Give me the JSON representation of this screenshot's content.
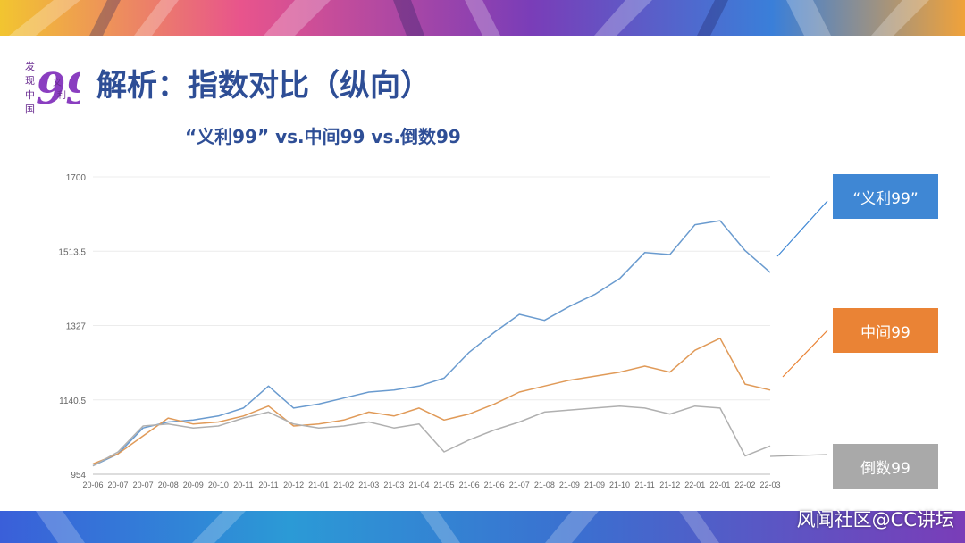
{
  "slide": {
    "title": "解析：指数对比（纵向）",
    "watermark": "风闻社区@CC讲坛",
    "logo": {
      "name": "family-seal-logo",
      "text_left": "发现中国",
      "text_right": "义利",
      "number": "99"
    }
  },
  "chart_data": {
    "type": "line",
    "title": "“义利99” vs.中间99 vs.倒数99",
    "xlabel": "",
    "ylabel": "",
    "ylim": [
      954,
      1700
    ],
    "yticks": [
      954,
      1140.5,
      1327,
      1513.5,
      1700
    ],
    "ytick_labels": [
      "954",
      "1140.5",
      "1327",
      "1513.5",
      "1700"
    ],
    "grid": true,
    "legend_placement": "right",
    "x": [
      "20-06",
      "20-07",
      "20-07",
      "20-08",
      "20-09",
      "20-10",
      "20-11",
      "20-11",
      "20-12",
      "21-01",
      "21-02",
      "21-03",
      "21-03",
      "21-04",
      "21-05",
      "21-06",
      "21-06",
      "21-07",
      "21-08",
      "21-09",
      "21-09",
      "21-10",
      "21-11",
      "21-12",
      "22-01",
      "22-01",
      "22-02",
      "22-03"
    ],
    "series": [
      {
        "name": "“义利99”",
        "color": "#6a9bcf",
        "legend_color": "#3f87d4",
        "values": [
          975,
          1005,
          1070,
          1085,
          1090,
          1100,
          1120,
          1175,
          1120,
          1130,
          1145,
          1160,
          1165,
          1175,
          1195,
          1260,
          1310,
          1355,
          1340,
          1375,
          1405,
          1445,
          1510,
          1505,
          1580,
          1590,
          1515,
          1460
        ]
      },
      {
        "name": "中间99",
        "color": "#e09a58",
        "legend_color": "#ea8335",
        "values": [
          980,
          1005,
          1050,
          1095,
          1080,
          1085,
          1100,
          1125,
          1075,
          1080,
          1090,
          1110,
          1100,
          1120,
          1090,
          1105,
          1130,
          1160,
          1175,
          1190,
          1200,
          1210,
          1225,
          1210,
          1265,
          1295,
          1180,
          1165
        ]
      },
      {
        "name": "倒数99",
        "color": "#b0b0b0",
        "legend_color": "#a9a9a9",
        "values": [
          975,
          1010,
          1075,
          1080,
          1070,
          1075,
          1095,
          1110,
          1080,
          1070,
          1075,
          1085,
          1070,
          1080,
          1010,
          1040,
          1065,
          1085,
          1110,
          1115,
          1120,
          1125,
          1120,
          1105,
          1125,
          1120,
          1000,
          1025
        ]
      }
    ]
  }
}
